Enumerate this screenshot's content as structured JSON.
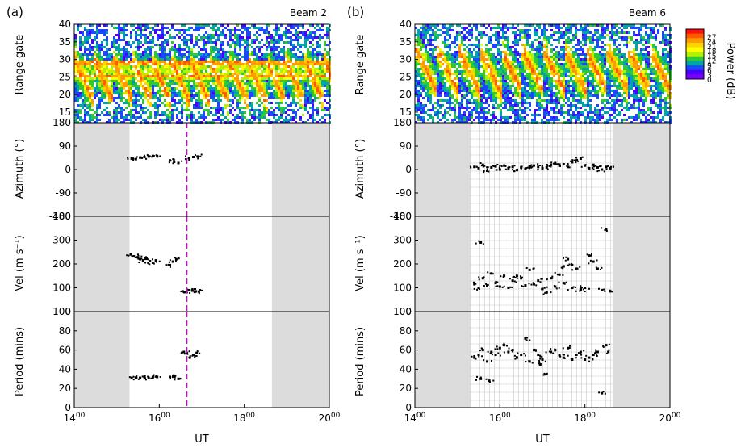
{
  "figure": {
    "panels": [
      {
        "label": "(a)",
        "beam": "Beam 2"
      },
      {
        "label": "(b)",
        "beam": "Beam 6"
      }
    ],
    "row_labels": {
      "range": "Range gate",
      "azimuth": "Azimuth (°)",
      "velocity": "Vel (m s⁻¹)",
      "period": "Period (mins)"
    },
    "x_axis": {
      "label": "UT",
      "ticks": [
        {
          "base": "14",
          "sup": "00"
        },
        {
          "base": "16",
          "sup": "00"
        },
        {
          "base": "18",
          "sup": "00"
        },
        {
          "base": "20",
          "sup": "00"
        }
      ]
    },
    "colorbar": {
      "label": "Power (dB)",
      "ticks": [
        "27",
        "24",
        "21",
        "18",
        "15",
        "12",
        "9",
        "6",
        "3",
        "0"
      ],
      "colors": [
        "#ff1010",
        "#ff5a00",
        "#ff9a00",
        "#ffd200",
        "#ffff00",
        "#b4f000",
        "#32c832",
        "#00a5a5",
        "#1e46ff",
        "#4b00ff",
        "#7800ff"
      ]
    }
  },
  "chart_data": [
    {
      "type": "heatmap",
      "panel": "a-range",
      "ylabel": "Range gate",
      "xlim": [
        14,
        20
      ],
      "ylim": [
        12,
        40
      ],
      "yticks": [
        "40",
        "35",
        "30",
        "25",
        "20",
        "15"
      ],
      "feature": "repeating diagonal high-power stripes near gates 18-30; horizontal high-power band at gates 25-30 across all times",
      "color_scale": "Power (dB) 0-27"
    },
    {
      "type": "scatter",
      "panel": "a-azimuth",
      "ylabel": "Azimuth (°)",
      "xlim": [
        14,
        20
      ],
      "ylim": [
        -180,
        180
      ],
      "yticks": [
        "180",
        "90",
        "0",
        "-90",
        "-180"
      ],
      "shaded_before": 15.3,
      "shaded_after": 18.65,
      "marker_time": 16.65,
      "x": [
        15.35,
        15.45,
        15.55,
        15.65,
        15.75,
        15.85,
        15.95,
        16.25,
        16.35,
        16.45,
        16.7,
        16.8,
        16.9
      ],
      "y": [
        42,
        40,
        46,
        48,
        50,
        52,
        52,
        35,
        30,
        25,
        45,
        48,
        50
      ]
    },
    {
      "type": "scatter",
      "panel": "a-velocity",
      "ylabel": "Vel (m s⁻¹)",
      "xlim": [
        14,
        20
      ],
      "ylim": [
        0,
        400
      ],
      "yticks": [
        "400",
        "300",
        "200",
        "100",
        "0"
      ],
      "shaded_before": 15.3,
      "shaded_after": 18.65,
      "marker_time": 16.65,
      "x": [
        15.33,
        15.4,
        15.47,
        15.55,
        15.62,
        15.7,
        15.78,
        15.85,
        15.92,
        16.25,
        16.32,
        16.4,
        16.55,
        16.62,
        16.7,
        16.78,
        16.86,
        16.93
      ],
      "y": [
        240,
        232,
        228,
        220,
        215,
        222,
        212,
        205,
        215,
        195,
        210,
        220,
        85,
        82,
        90,
        88,
        85,
        84
      ]
    },
    {
      "type": "scatter",
      "panel": "a-period",
      "ylabel": "Period (mins)",
      "xlim": [
        14,
        20
      ],
      "ylim": [
        0,
        100
      ],
      "yticks": [
        "100",
        "80",
        "60",
        "40",
        "20",
        "0"
      ],
      "shaded_before": 15.3,
      "shaded_after": 18.65,
      "marker_time": 16.65,
      "x": [
        15.35,
        15.45,
        15.55,
        15.65,
        15.75,
        15.85,
        15.95,
        16.25,
        16.35,
        16.45,
        16.58,
        16.65,
        16.72,
        16.8,
        16.88
      ],
      "y": [
        31,
        31,
        31,
        32,
        31,
        32,
        32,
        32,
        33,
        30,
        58,
        57,
        52,
        55,
        57
      ]
    },
    {
      "type": "heatmap",
      "panel": "b-range",
      "ylabel": "Range gate",
      "xlim": [
        14,
        20
      ],
      "ylim": [
        12,
        40
      ],
      "yticks": [
        "40",
        "35",
        "30",
        "25",
        "20",
        "15"
      ],
      "feature": "repeating diagonal high-power stripes near gates 18-34",
      "color_scale": "Power (dB) 0-27"
    },
    {
      "type": "scatter",
      "panel": "b-azimuth",
      "ylabel": "Azimuth (°)",
      "xlim": [
        14,
        20
      ],
      "ylim": [
        -180,
        180
      ],
      "yticks": [
        "180",
        "90",
        "0",
        "-90",
        "-180"
      ],
      "shaded_before": 15.3,
      "shaded_after": 18.65,
      "x": [
        15.4,
        15.5,
        15.6,
        15.7,
        15.8,
        15.9,
        16.0,
        16.1,
        16.2,
        16.3,
        16.4,
        16.5,
        16.6,
        16.7,
        16.8,
        16.9,
        17.0,
        17.1,
        17.2,
        17.3,
        17.4,
        17.5,
        17.6,
        17.7,
        17.8,
        17.9,
        18.0,
        18.1,
        18.2,
        18.3,
        18.4,
        18.5,
        18.6
      ],
      "y": [
        10,
        5,
        18,
        -5,
        8,
        12,
        0,
        15,
        5,
        10,
        -2,
        8,
        3,
        12,
        15,
        10,
        5,
        8,
        18,
        25,
        15,
        20,
        10,
        28,
        35,
        42,
        15,
        5,
        18,
        8,
        0,
        10,
        5
      ]
    },
    {
      "type": "scatter",
      "panel": "b-velocity",
      "ylabel": "Vel (m s⁻¹)",
      "xlim": [
        14,
        20
      ],
      "ylim": [
        0,
        400
      ],
      "yticks": [
        "400",
        "300",
        "200",
        "100",
        "0"
      ],
      "shaded_before": 15.3,
      "shaded_after": 18.65,
      "x": [
        15.4,
        15.5,
        15.55,
        15.6,
        15.7,
        15.8,
        15.9,
        16.0,
        16.1,
        16.2,
        16.3,
        16.4,
        16.5,
        16.6,
        16.7,
        16.8,
        16.9,
        17.0,
        17.1,
        17.2,
        17.3,
        17.4,
        17.5,
        17.6,
        17.7,
        17.8,
        17.9,
        18.0,
        18.1,
        18.2,
        18.3,
        18.4,
        18.5,
        18.6,
        17.5,
        17.7,
        17.9
      ],
      "y": [
        115,
        100,
        290,
        140,
        110,
        160,
        120,
        105,
        150,
        100,
        130,
        150,
        140,
        110,
        175,
        115,
        130,
        95,
        80,
        140,
        105,
        155,
        190,
        220,
        195,
        180,
        95,
        100,
        235,
        210,
        180,
        90,
        345,
        85,
        120,
        100,
        90
      ]
    },
    {
      "type": "scatter",
      "panel": "b-period",
      "ylabel": "Period (mins)",
      "xlim": [
        14,
        20
      ],
      "ylim": [
        0,
        100
      ],
      "yticks": [
        "100",
        "80",
        "60",
        "40",
        "20",
        "0"
      ],
      "shaded_before": 15.3,
      "shaded_after": 18.65,
      "x": [
        15.4,
        15.5,
        15.55,
        15.6,
        15.7,
        15.75,
        15.8,
        15.9,
        16.0,
        16.1,
        16.2,
        16.3,
        16.4,
        16.5,
        16.6,
        16.7,
        16.8,
        16.9,
        17.0,
        17.1,
        17.2,
        17.3,
        17.4,
        17.5,
        17.6,
        17.7,
        17.8,
        17.9,
        18.0,
        18.1,
        18.2,
        18.3,
        18.4,
        18.5,
        18.55,
        16.95
      ],
      "y": [
        52,
        55,
        30,
        60,
        48,
        28,
        58,
        55,
        62,
        65,
        58,
        60,
        52,
        55,
        72,
        48,
        60,
        55,
        50,
        35,
        58,
        60,
        55,
        52,
        62,
        50,
        55,
        58,
        50,
        52,
        55,
        58,
        15,
        65,
        58,
        45
      ]
    }
  ]
}
